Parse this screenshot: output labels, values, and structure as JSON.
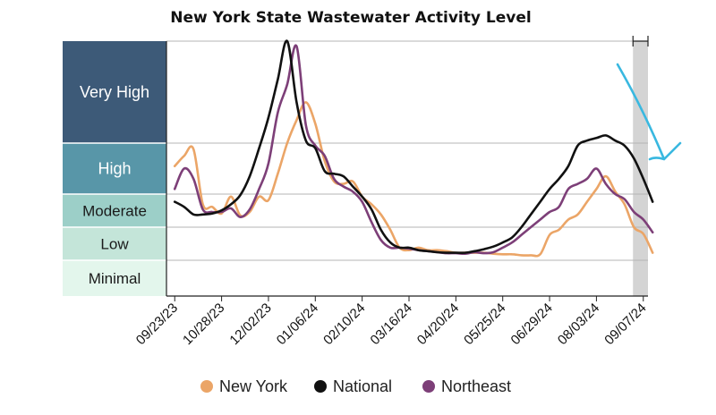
{
  "chart_data": {
    "type": "line",
    "title": "New York State Wastewater Activity Level",
    "levels": [
      {
        "label": "Very High",
        "color": "#3d5a78",
        "text_color": "#ffffff",
        "y_range": [
          4,
          6
        ]
      },
      {
        "label": "High",
        "color": "#5896a8",
        "text_color": "#ffffff",
        "y_range": [
          3,
          4
        ]
      },
      {
        "label": "Moderate",
        "color": "#9ccfc8",
        "text_color": "#1a1a1a",
        "y_range": [
          2.35,
          3
        ]
      },
      {
        "label": "Low",
        "color": "#c4e5d9",
        "text_color": "#1a1a1a",
        "y_range": [
          1.7,
          2.35
        ]
      },
      {
        "label": "Minimal",
        "color": "#e3f6ec",
        "text_color": "#1a1a1a",
        "y_range": [
          1,
          1.7
        ]
      }
    ],
    "ylim": [
      1,
      6
    ],
    "x_tick_labels": [
      "09/23/23",
      "10/28/23",
      "12/02/23",
      "01/06/24",
      "02/10/24",
      "03/16/24",
      "04/20/24",
      "05/25/24",
      "06/29/24",
      "08/03/24",
      "09/07/24"
    ],
    "x_tick_weeks": [
      0,
      5,
      10,
      15,
      20,
      25,
      30,
      35,
      40,
      45,
      50
    ],
    "x_range_weeks": [
      -0.5,
      50.5
    ],
    "shaded_period_weeks": [
      48.9,
      50.5
    ],
    "grid": true,
    "legend_position": "bottom",
    "series": [
      {
        "name": "New York",
        "color": "#eba567",
        "values": [
          3.55,
          3.75,
          3.88,
          2.8,
          2.75,
          2.62,
          2.95,
          2.58,
          2.65,
          2.95,
          2.88,
          3.4,
          4.0,
          4.45,
          4.8,
          4.38,
          3.65,
          3.25,
          3.2,
          3.25,
          2.95,
          2.8,
          2.6,
          2.3,
          1.95,
          1.9,
          1.95,
          1.9,
          1.9,
          1.88,
          1.85,
          1.85,
          1.85,
          1.85,
          1.83,
          1.82,
          1.82,
          1.8,
          1.8,
          1.82,
          2.2,
          2.3,
          2.5,
          2.6,
          2.85,
          3.1,
          3.35,
          3.05,
          2.8,
          2.35,
          2.22,
          1.85
        ]
      },
      {
        "name": "National",
        "color": "#111111",
        "values": [
          2.85,
          2.75,
          2.6,
          2.6,
          2.62,
          2.68,
          2.8,
          2.98,
          3.35,
          3.9,
          4.5,
          5.25,
          6.0,
          4.8,
          4.05,
          3.9,
          3.45,
          3.4,
          3.35,
          3.15,
          2.95,
          2.7,
          2.3,
          2.05,
          1.95,
          1.95,
          1.9,
          1.88,
          1.86,
          1.85,
          1.85,
          1.85,
          1.88,
          1.92,
          1.97,
          2.05,
          2.15,
          2.35,
          2.6,
          2.85,
          3.1,
          3.3,
          3.55,
          3.95,
          4.05,
          4.1,
          4.15,
          4.05,
          3.95,
          3.7,
          3.3,
          2.85
        ]
      },
      {
        "name": "Northeast",
        "color": "#7d3f78",
        "values": [
          3.1,
          3.5,
          3.3,
          2.7,
          2.65,
          2.65,
          2.72,
          2.55,
          2.7,
          3.1,
          3.6,
          4.6,
          5.15,
          5.9,
          4.35,
          3.95,
          3.75,
          3.3,
          3.15,
          3.05,
          2.85,
          2.45,
          2.1,
          1.95,
          1.95,
          1.93,
          1.9,
          1.88,
          1.86,
          1.84,
          1.84,
          1.83,
          1.86,
          1.84,
          1.86,
          1.95,
          2.05,
          2.2,
          2.35,
          2.5,
          2.65,
          2.75,
          3.1,
          3.2,
          3.3,
          3.5,
          3.2,
          3.0,
          2.9,
          2.65,
          2.5,
          2.25
        ]
      }
    ]
  },
  "annotation": {
    "arrow_color": "#39b8e0"
  }
}
